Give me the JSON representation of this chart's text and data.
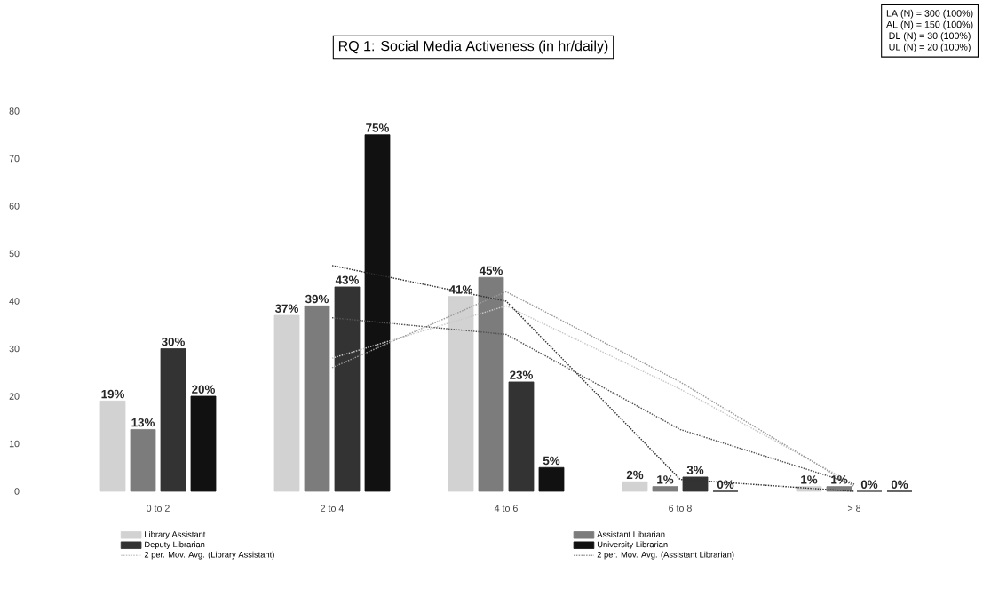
{
  "chart_data": {
    "type": "bar",
    "title": "RQ 1: Social Media Activeness (in hr/daily)",
    "categories": [
      "0 to 2",
      "2 to 4",
      "4 to 6",
      "6 to 8",
      "> 8"
    ],
    "series": [
      {
        "name": "Library Assistant",
        "color": "#d2d2d2",
        "values": [
          19,
          37,
          41,
          2,
          1
        ],
        "value_labels": [
          "19%",
          "37%",
          "41%",
          "2%",
          "1%"
        ]
      },
      {
        "name": "Assistant Librarian",
        "color": "#7c7c7c",
        "values": [
          13,
          39,
          45,
          1,
          1
        ],
        "value_labels": [
          "13%",
          "39%",
          "45%",
          "1%",
          "1%"
        ]
      },
      {
        "name": "Deputy Librarian",
        "color": "#333333",
        "values": [
          30,
          43,
          23,
          3,
          0
        ],
        "value_labels": [
          "30%",
          "43%",
          "23%",
          "3%",
          "0%"
        ]
      },
      {
        "name": "University Librarian",
        "color": "#111111",
        "values": [
          20,
          75,
          5,
          0,
          0
        ],
        "value_labels": [
          "20%",
          "75%",
          "5%",
          "0%",
          "0%"
        ]
      },
      {
        "name": "2 per. Mov. Avg. (Library Assistant)",
        "type": "line",
        "line_style": "dotted",
        "color": "#c8c8c8",
        "values": [
          null,
          28,
          39,
          21.5,
          1.5
        ]
      },
      {
        "name": "2 per. Mov. Avg. (Assistant Librarian)",
        "type": "line",
        "line_style": "dotted",
        "color": "#9a9a9a",
        "values": [
          null,
          26,
          42,
          23,
          1
        ]
      },
      {
        "type": "line",
        "line_style": "dotted",
        "color": "#555555",
        "values": [
          null,
          36.5,
          33,
          13,
          1.5
        ]
      },
      {
        "type": "line",
        "line_style": "dotted",
        "color": "#333333",
        "values": [
          null,
          47.5,
          40,
          2.5,
          0
        ]
      }
    ],
    "ylim": [
      0,
      80
    ],
    "yticks": [
      0,
      10,
      20,
      30,
      40,
      50,
      60,
      70,
      80
    ],
    "grid": false,
    "legend": "bottom",
    "annotations": [
      "LA (N) = 300 (100%)",
      "AL (N) = 150 (100%)",
      "DL (N) = 30 (100%)",
      "UL (N) = 20 (100%)"
    ]
  }
}
